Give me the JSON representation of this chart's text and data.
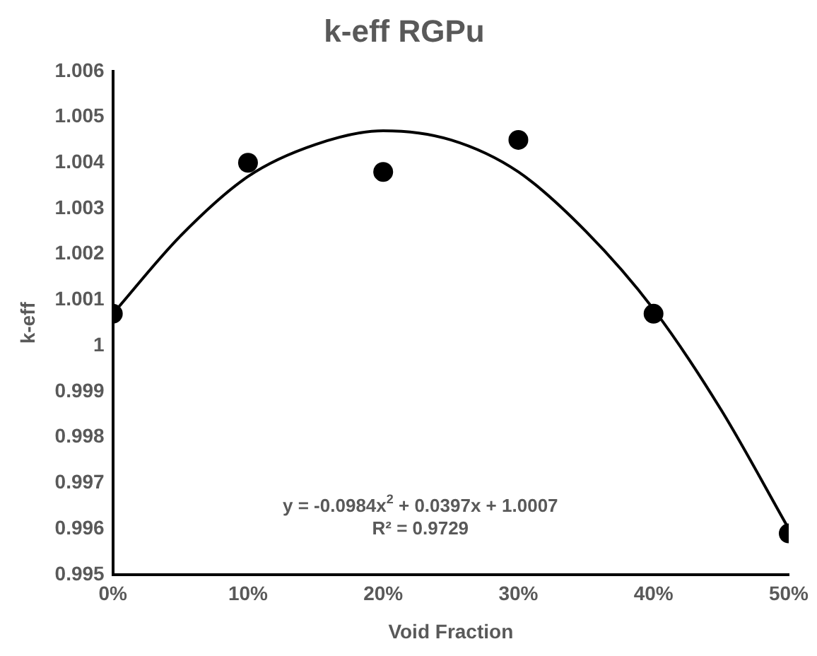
{
  "chart_data": {
    "type": "scatter",
    "title": "k-eff RGPu",
    "xlabel": "Void Fraction",
    "ylabel": "k-eff",
    "x": [
      0,
      0.1,
      0.2,
      0.3,
      0.4,
      0.5
    ],
    "series": [
      {
        "color": "#000000",
        "values": [
          1.0007,
          1.004,
          1.0038,
          1.0045,
          1.0007,
          0.9959
        ]
      },
      {
        "type": "line",
        "color": "#000000",
        "marker": "none",
        "x": [
          0,
          0.05,
          0.1,
          0.15,
          0.2,
          0.25,
          0.3,
          0.35,
          0.4,
          0.45,
          0.5
        ],
        "values": [
          1.0007,
          1.0024,
          1.0037,
          1.0044,
          1.0047,
          1.0045,
          1.0038,
          1.0025,
          1.0008,
          0.9986,
          0.996
        ]
      }
    ],
    "xlim": [
      0,
      0.5
    ],
    "xticks": [
      {
        "value": 0,
        "label": "0%"
      },
      {
        "value": 0.1,
        "label": "10%"
      },
      {
        "value": 0.2,
        "label": "20%"
      },
      {
        "value": 0.3,
        "label": "30%"
      },
      {
        "value": 0.4,
        "label": "40%"
      },
      {
        "value": 0.5,
        "label": "50%"
      }
    ],
    "ylim": [
      0.995,
      1.006
    ],
    "yticks": [
      {
        "value": 0.995,
        "label": "0.995"
      },
      {
        "value": 0.996,
        "label": "0.996"
      },
      {
        "value": 0.997,
        "label": "0.997"
      },
      {
        "value": 0.998,
        "label": "0.998"
      },
      {
        "value": 0.999,
        "label": "0.999"
      },
      {
        "value": 1,
        "label": "1"
      },
      {
        "value": 1.001,
        "label": "1.001"
      },
      {
        "value": 1.002,
        "label": "1.002"
      },
      {
        "value": 1.003,
        "label": "1.003"
      },
      {
        "value": 1.004,
        "label": "1.004"
      },
      {
        "value": 1.005,
        "label": "1.005"
      },
      {
        "value": 1.006,
        "label": "1.006"
      }
    ],
    "annotations": [
      "y = -0.0984x$^{2}$ + 0.0397x + 1.0007",
      "R² = 0.9729"
    ],
    "marker": "circle",
    "grid": false,
    "legend": false
  }
}
